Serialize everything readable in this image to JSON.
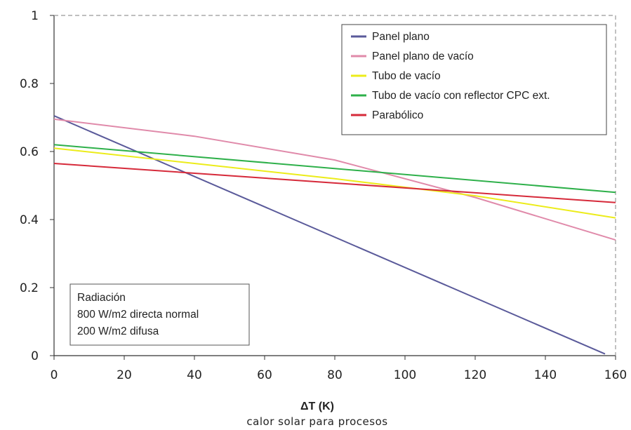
{
  "chart_data": {
    "type": "line",
    "xlabel": "ΔT (K)",
    "ylabel": "",
    "caption": "calor solar para procesos",
    "xlim": [
      0,
      160
    ],
    "ylim": [
      0,
      1
    ],
    "x_ticks": [
      "0",
      "20",
      "40",
      "60",
      "80",
      "100",
      "120",
      "140",
      "160"
    ],
    "y_ticks": [
      "0",
      "0.2",
      "0.4",
      "0.6",
      "0.8",
      "1"
    ],
    "grid": false,
    "legend_position": "top-right",
    "series": [
      {
        "name": "Panel plano",
        "color": "#5a5a9a",
        "x": [
          0,
          157
        ],
        "y": [
          0.705,
          0.005
        ]
      },
      {
        "name": "Panel plano de vacío",
        "color": "#e08aaa",
        "x": [
          0,
          40,
          80,
          120,
          160
        ],
        "y": [
          0.695,
          0.645,
          0.575,
          0.465,
          0.34
        ]
      },
      {
        "name": "Tubo de vacío",
        "color": "#ecec1a",
        "x": [
          0,
          40,
          80,
          120,
          160
        ],
        "y": [
          0.61,
          0.565,
          0.52,
          0.47,
          0.405
        ]
      },
      {
        "name": "Tubo de vacío con reflector CPC ext.",
        "color": "#2eb04a",
        "x": [
          0,
          160
        ],
        "y": [
          0.62,
          0.48
        ]
      },
      {
        "name": "Parabólico",
        "color": "#d62a3a",
        "x": [
          0,
          160
        ],
        "y": [
          0.565,
          0.45
        ]
      }
    ],
    "annotation": {
      "lines": [
        "Radiación",
        "800 W/m2 directa normal",
        "200 W/m2 difusa"
      ]
    }
  }
}
